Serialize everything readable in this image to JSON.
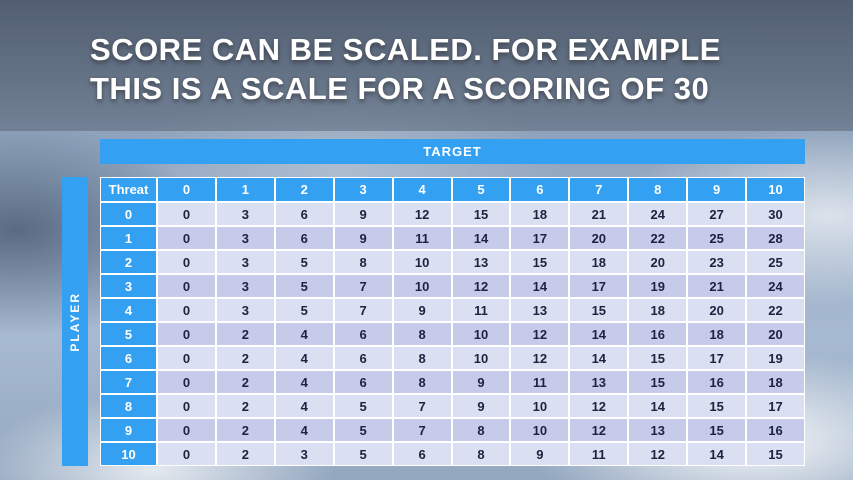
{
  "title": {
    "line1": "SCORE CAN BE SCALED. FOR EXAMPLE",
    "line2": "THIS IS A SCALE FOR A SCORING OF 30"
  },
  "chart_data": {
    "type": "table",
    "title": "SCORE CAN BE SCALED. FOR EXAMPLE THIS IS A SCALE FOR A SCORING OF 30",
    "target_label": "TARGET",
    "player_label": "PLAYER",
    "corner_label": "Threat",
    "columns": [
      "0",
      "1",
      "2",
      "3",
      "4",
      "5",
      "6",
      "7",
      "8",
      "9",
      "10"
    ],
    "row_labels": [
      "0",
      "1",
      "2",
      "3",
      "4",
      "5",
      "6",
      "7",
      "8",
      "9",
      "10"
    ],
    "values": [
      [
        0,
        3,
        6,
        9,
        12,
        15,
        18,
        21,
        24,
        27,
        30
      ],
      [
        0,
        3,
        6,
        9,
        11,
        14,
        17,
        20,
        22,
        25,
        28
      ],
      [
        0,
        3,
        5,
        8,
        10,
        13,
        15,
        18,
        20,
        23,
        25
      ],
      [
        0,
        3,
        5,
        7,
        10,
        12,
        14,
        17,
        19,
        21,
        24
      ],
      [
        0,
        3,
        5,
        7,
        9,
        11,
        13,
        15,
        18,
        20,
        22
      ],
      [
        0,
        2,
        4,
        6,
        8,
        10,
        12,
        14,
        16,
        18,
        20
      ],
      [
        0,
        2,
        4,
        6,
        8,
        10,
        12,
        14,
        15,
        17,
        19
      ],
      [
        0,
        2,
        4,
        6,
        8,
        9,
        11,
        13,
        15,
        16,
        18
      ],
      [
        0,
        2,
        4,
        5,
        7,
        9,
        10,
        12,
        14,
        15,
        17
      ],
      [
        0,
        2,
        4,
        5,
        7,
        8,
        10,
        12,
        13,
        15,
        16
      ],
      [
        0,
        2,
        3,
        5,
        6,
        8,
        9,
        11,
        12,
        14,
        15
      ]
    ]
  },
  "colors": {
    "header_blue": "#33a0f2",
    "row_light": "#dbdff2",
    "row_dark": "#c6cbe9",
    "body_text": "#1c2340"
  }
}
